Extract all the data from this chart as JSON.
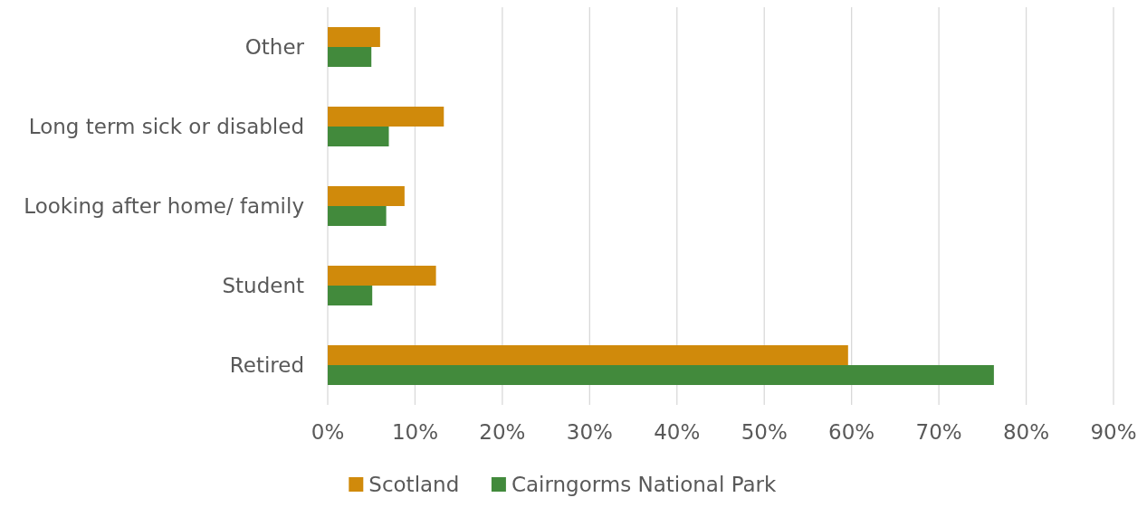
{
  "chart_data": {
    "type": "bar",
    "orientation": "horizontal",
    "categories": [
      "Other",
      "Long term sick or disabled",
      "Looking after home/ family",
      "Student",
      "Retired"
    ],
    "series": [
      {
        "name": "Scotland",
        "color": "#d08a0b",
        "values": [
          6.0,
          13.3,
          8.8,
          12.4,
          59.6
        ]
      },
      {
        "name": "Cairngorms National Park",
        "color": "#428a3c",
        "values": [
          5.0,
          7.0,
          6.7,
          5.1,
          76.3
        ]
      }
    ],
    "xlim": [
      0,
      90
    ],
    "xticks": [
      {
        "value": 0,
        "label": "0%"
      },
      {
        "value": 10,
        "label": "10%"
      },
      {
        "value": 20,
        "label": "20%"
      },
      {
        "value": 30,
        "label": "30%"
      },
      {
        "value": 40,
        "label": "40%"
      },
      {
        "value": 50,
        "label": "50%"
      },
      {
        "value": 60,
        "label": "60%"
      },
      {
        "value": 70,
        "label": "70%"
      },
      {
        "value": 80,
        "label": "80%"
      },
      {
        "value": 90,
        "label": "90%"
      }
    ],
    "grid": "x",
    "legend": "bottom"
  }
}
